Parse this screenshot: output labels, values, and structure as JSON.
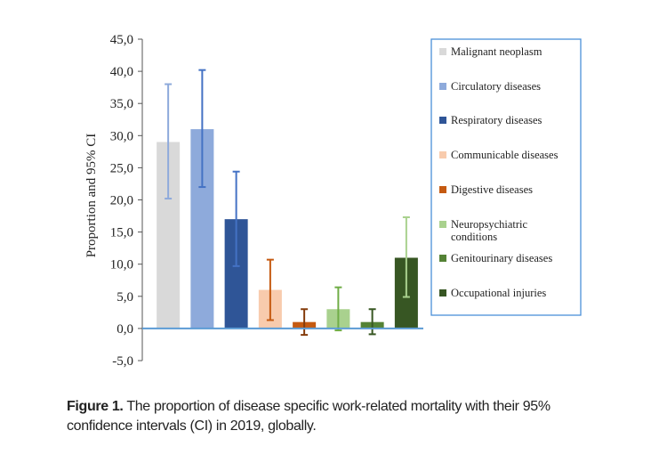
{
  "chart_data": {
    "type": "bar",
    "title": "",
    "xlabel": "",
    "ylabel": "Proportion and 95% CI",
    "ylim": [
      -5,
      45
    ],
    "yticks": [
      "45,0",
      "40,0",
      "35,0",
      "30,0",
      "25,0",
      "20,0",
      "15,0",
      "10,0",
      "5,0",
      "0,0",
      "-5,0"
    ],
    "ytick_values": [
      45,
      40,
      35,
      30,
      25,
      20,
      15,
      10,
      5,
      0,
      -5
    ],
    "grid": false,
    "legend_position": "right",
    "categories": [
      "Malignant neoplasm",
      "Circulatory diseases",
      "Respiratory diseases",
      "Communicable diseases",
      "Digestive diseases",
      "Neuropsychiatric conditions",
      "Genitourinary diseases",
      "Occupational injuries"
    ],
    "legend_lines": [
      [
        "Malignant neoplasm"
      ],
      [
        "Circulatory diseases"
      ],
      [
        "Respiratory diseases"
      ],
      [
        "Communicable diseases"
      ],
      [
        "Digestive diseases"
      ],
      [
        "Neuropsychiatric",
        "conditions"
      ],
      [
        "Genitourinary diseases"
      ],
      [
        "Occupational injuries"
      ]
    ],
    "values": [
      29.0,
      31.0,
      17.0,
      6.0,
      1.0,
      3.0,
      1.0,
      11.0
    ],
    "ci_low": [
      20.2,
      22.0,
      9.7,
      1.3,
      -1.0,
      -0.3,
      -0.9,
      4.9
    ],
    "ci_high": [
      38.0,
      40.2,
      24.4,
      10.7,
      3.0,
      6.4,
      3.0,
      17.3
    ],
    "colors": [
      "#d9d9d9",
      "#8eaadb",
      "#2f5597",
      "#f8cbad",
      "#c55a11",
      "#a9d18e",
      "#548235",
      "#375623"
    ],
    "error_colors": [
      "#8eaadb",
      "#4472c4",
      "#4472c4",
      "#c55a11",
      "#843c0c",
      "#70ad47",
      "#385723",
      "#a9d18e"
    ]
  },
  "caption": {
    "label": "Figure 1.",
    "text": " The proportion of disease specific work-related mortality with their 95% confidence intervals (CI) in 2019, globally."
  }
}
